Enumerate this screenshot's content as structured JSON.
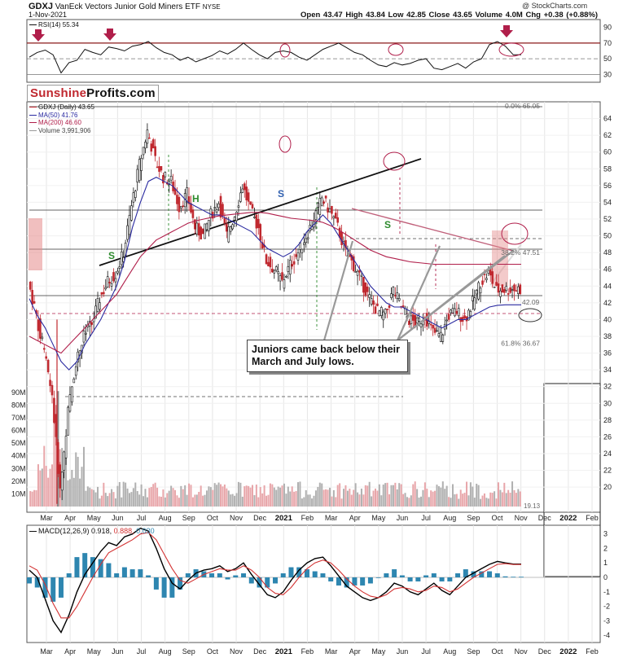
{
  "header": {
    "symbol": "GDXJ",
    "name": "VanEck Vectors Junior Gold Miners ETF",
    "exchange": "NYSE",
    "date": "1-Nov-2021",
    "copyright": "@ StockCharts.com",
    "ohlc": "Open 43.47  High 43.84  Low 42.85  Close 43.65  Volume 4.0M  Chg +0.38 (+0.88%)"
  },
  "brand": {
    "part1": "Sunshine",
    "part2": "Profits.com"
  },
  "callout": "Juniors came back below their March and July lows.",
  "legend": {
    "price": "GDXJ (Daily) 43.65",
    "ma50": "MA(50) 41.76",
    "ma200": "MA(200) 46.60",
    "volume": "Volume 3,991,906",
    "rsi": "RSI(14) 55.34",
    "macd_label": "MACD(12,26,9)",
    "macd_v1": "0.918,",
    "macd_v2": "0.888,",
    "macd_v3": "0.030",
    "volume_ma": "19.13"
  },
  "colors": {
    "price_up": "#111111",
    "price_down": "#c0282f",
    "ma50": "#2a2aa0",
    "ma200": "#b01e4a",
    "macd": "#000000",
    "signal": "#d33333",
    "hist": "#2e86b0",
    "volume_up": "#b0b0b0",
    "volume_down": "#e8a6aa",
    "pattern_labels": "#2e8b2e",
    "rsi_level": "#8b1a1a"
  },
  "chart_data": [
    {
      "panel": "rsi",
      "type": "line",
      "series": [
        {
          "name": "RSI(14)",
          "values": [
            52,
            58,
            61,
            55,
            32,
            45,
            48,
            62,
            58,
            55,
            65,
            63,
            60,
            66,
            68,
            72,
            64,
            58,
            55,
            48,
            52,
            46,
            50,
            54,
            60,
            56,
            62,
            70,
            62,
            55,
            50,
            58,
            60,
            58,
            52,
            48,
            55,
            62,
            66,
            70,
            64,
            58,
            55,
            48,
            42,
            40,
            45,
            42,
            44,
            48,
            50,
            38,
            36,
            40,
            44,
            38,
            46,
            50,
            68,
            72,
            66,
            55,
            55
          ]
        }
      ],
      "ylim": [
        20,
        100
      ],
      "yticks": [
        90,
        70,
        50,
        30
      ],
      "hlines": [
        70,
        50,
        30
      ],
      "markers": "red down arrows and circles at RSI peaks"
    },
    {
      "panel": "price",
      "type": "candlestick",
      "series": [
        {
          "name": "Close",
          "values": [
            44.5,
            40.5,
            36.0,
            31.0,
            19.5,
            29.0,
            35.0,
            38.0,
            39.5,
            42.5,
            44.5,
            45.5,
            48.0,
            53.5,
            58.5,
            62.5,
            59.0,
            57.0,
            56.5,
            53.5,
            55.0,
            51.0,
            50.0,
            52.5,
            54.0,
            50.0,
            52.5,
            56.0,
            53.0,
            51.0,
            47.0,
            46.0,
            44.5,
            46.5,
            48.0,
            50.0,
            52.0,
            54.5,
            53.0,
            51.0,
            48.0,
            46.5,
            44.5,
            42.5,
            41.0,
            40.5,
            43.5,
            41.5,
            40.0,
            39.5,
            40.5,
            38.5,
            38.0,
            40.5,
            41.0,
            40.0,
            42.0,
            44.5,
            45.5,
            43.5,
            43.6,
            43.65,
            43.65
          ]
        },
        {
          "name": "MA(50)",
          "values": [
            42.5,
            40.5,
            39.0,
            37.0,
            35.0,
            34.0,
            35.0,
            37.0,
            38.5,
            40.0,
            42.0,
            44.0,
            47.0,
            51.0,
            54.0,
            56.5,
            57.0,
            56.5,
            56.0,
            55.0,
            54.0,
            53.5,
            53.0,
            52.5,
            52.5,
            52.0,
            51.5,
            51.0,
            50.5,
            49.5,
            48.5,
            48.0,
            47.5,
            48.0,
            49.0,
            50.5,
            51.5,
            52.5,
            51.5,
            50.0,
            48.5,
            47.0,
            45.5,
            44.0,
            43.0,
            42.0,
            41.5,
            41.5,
            41.0,
            40.5,
            40.0,
            39.5,
            39.0,
            39.5,
            40.0,
            40.0,
            40.5,
            41.0,
            41.5,
            41.7,
            41.76,
            41.76,
            41.76
          ]
        },
        {
          "name": "MA(200)",
          "values": [
            38.0,
            37.5,
            37.0,
            36.5,
            36.0,
            37.0,
            38.0,
            39.0,
            40.0,
            41.0,
            42.0,
            43.0,
            44.5,
            46.0,
            47.5,
            48.5,
            49.5,
            50.0,
            50.5,
            51.0,
            51.5,
            51.8,
            52.0,
            52.2,
            52.4,
            52.5,
            52.6,
            52.7,
            52.8,
            52.8,
            52.7,
            52.5,
            52.3,
            52.1,
            52.0,
            51.9,
            51.8,
            51.6,
            51.2,
            50.7,
            50.1,
            49.5,
            48.9,
            48.3,
            47.9,
            47.5,
            47.3,
            47.1,
            46.9,
            46.8,
            46.7,
            46.6,
            46.6,
            46.6,
            46.6,
            46.6,
            46.6,
            46.6,
            46.6,
            46.6,
            46.6,
            46.6,
            46.6
          ]
        }
      ],
      "ylim": [
        17,
        66
      ],
      "yticks": [
        64,
        62,
        60,
        58,
        56,
        54,
        52,
        50,
        48,
        46,
        44,
        42,
        40,
        38,
        36,
        34,
        32,
        30,
        28,
        26,
        24,
        22,
        20
      ],
      "fib_levels": [
        {
          "label": "0.0% 65.05",
          "y": 65.05
        },
        {
          "label": "38.2% 47.51",
          "y": 47.51
        },
        {
          "label": "61.8% 36.67",
          "y": 36.67
        }
      ],
      "price_label": "42.09",
      "pattern_labels": [
        "S",
        "H",
        "S",
        "S"
      ]
    },
    {
      "panel": "volume",
      "type": "bar",
      "ylabel": "",
      "yticks": [
        "90M",
        "80M",
        "70M",
        "60M",
        "50M",
        "40M",
        "30M",
        "20M",
        "10M"
      ],
      "ylim": [
        0,
        95
      ]
    },
    {
      "panel": "macd",
      "type": "line",
      "series": [
        {
          "name": "MACD",
          "values": [
            0.5,
            0.0,
            -1.5,
            -3.0,
            -3.8,
            -2.6,
            -1.0,
            0.2,
            1.0,
            1.8,
            2.4,
            2.2,
            2.8,
            3.0,
            3.4,
            3.2,
            2.0,
            0.6,
            -0.4,
            -0.8,
            -0.2,
            0.3,
            0.5,
            0.6,
            0.8,
            0.4,
            0.6,
            1.0,
            0.2,
            -0.5,
            -1.2,
            -1.4,
            -1.0,
            -0.2,
            0.5,
            1.0,
            1.3,
            1.4,
            0.8,
            0.1,
            -0.6,
            -1.0,
            -1.4,
            -1.6,
            -1.4,
            -1.0,
            -0.4,
            -0.6,
            -1.0,
            -1.2,
            -0.8,
            -0.4,
            -0.9,
            -1.2,
            -0.6,
            0.0,
            0.3,
            0.6,
            0.9,
            1.1,
            1.0,
            0.918,
            0.918
          ]
        },
        {
          "name": "Signal",
          "values": [
            0.8,
            0.5,
            -0.5,
            -1.8,
            -2.8,
            -2.8,
            -2.0,
            -1.0,
            0.0,
            0.9,
            1.7,
            2.0,
            2.3,
            2.6,
            3.0,
            3.1,
            2.6,
            1.6,
            0.6,
            -0.2,
            -0.4,
            -0.1,
            0.2,
            0.4,
            0.6,
            0.5,
            0.5,
            0.8,
            0.5,
            0.0,
            -0.7,
            -1.1,
            -1.2,
            -0.7,
            0.0,
            0.6,
            1.0,
            1.2,
            1.0,
            0.5,
            -0.1,
            -0.6,
            -1.0,
            -1.3,
            -1.4,
            -1.2,
            -0.8,
            -0.7,
            -0.8,
            -1.0,
            -0.9,
            -0.6,
            -0.7,
            -1.0,
            -0.8,
            -0.4,
            0.0,
            0.3,
            0.6,
            0.9,
            0.95,
            0.888,
            0.888
          ]
        }
      ],
      "ylim": [
        -4.5,
        3.6
      ],
      "yticks": [
        3,
        2,
        1,
        0,
        -1,
        -2,
        -3,
        -4
      ]
    }
  ],
  "x_axis": {
    "labels": [
      "Mar",
      "Apr",
      "May",
      "Jun",
      "Jul",
      "Aug",
      "Sep",
      "Oct",
      "Nov",
      "Dec",
      "2021",
      "Feb",
      "Mar",
      "Apr",
      "May",
      "Jun",
      "Jul",
      "Aug",
      "Sep",
      "Oct",
      "Nov",
      "Dec",
      "2022",
      "Feb"
    ]
  }
}
